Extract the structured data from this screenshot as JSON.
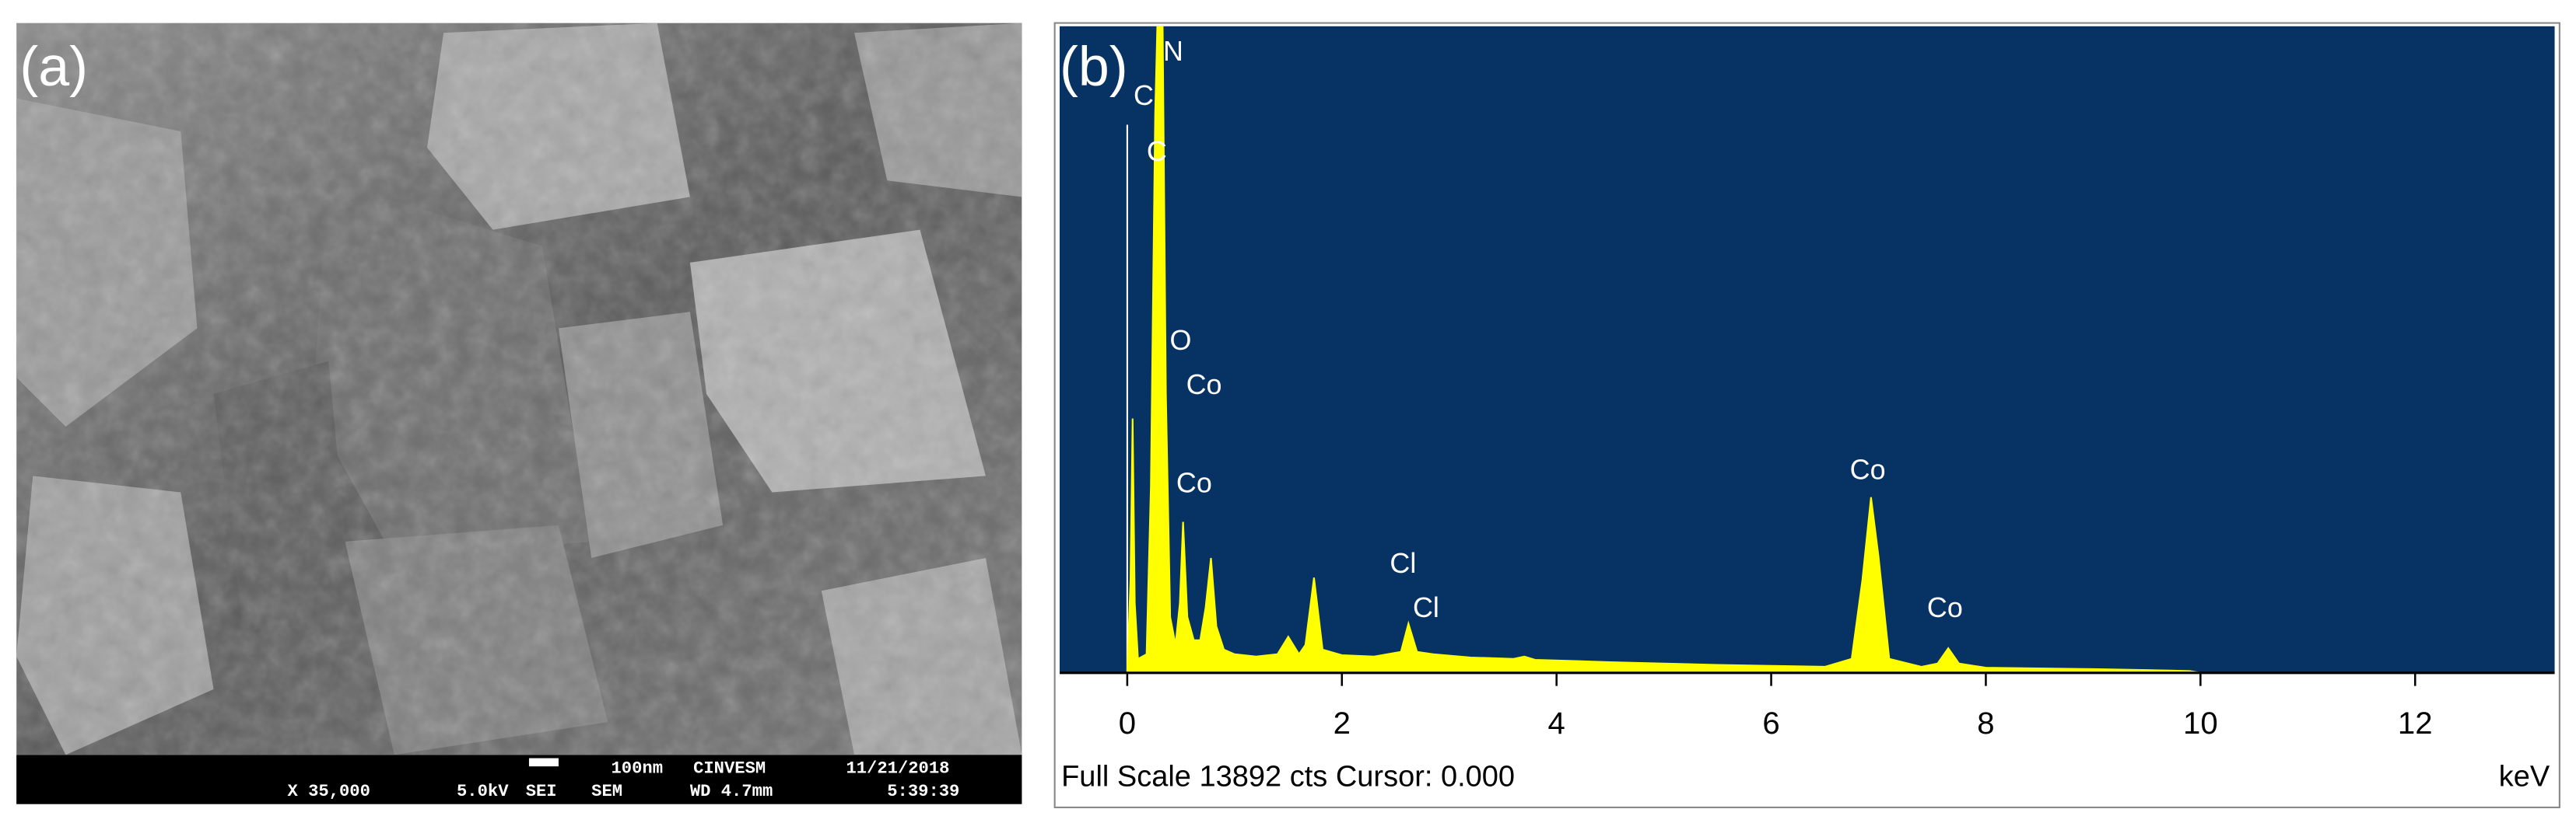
{
  "sem_panel": {
    "label": "(a)",
    "info_bar": {
      "scale": "100nm",
      "institution": "CINVESM",
      "date": "11/21/2018",
      "magnification": "X 35,000",
      "voltage": "5.0kV",
      "detector": "SEI",
      "mode": "SEM",
      "working_distance": "WD 4.7mm",
      "time": "5:39:39"
    }
  },
  "chart_data": {
    "type": "area",
    "panel_label": "(b)",
    "color": "#ffff00",
    "background": "#063264",
    "x": [
      -0.02,
      0.0,
      0.03,
      0.05,
      0.07,
      0.1,
      0.18,
      0.22,
      0.26,
      0.28,
      0.33,
      0.36,
      0.4,
      0.45,
      0.49,
      0.52,
      0.56,
      0.62,
      0.68,
      0.73,
      0.78,
      0.83,
      0.9,
      1.0,
      1.2,
      1.4,
      1.5,
      1.6,
      1.66,
      1.74,
      1.82,
      2.0,
      2.3,
      2.55,
      2.62,
      2.7,
      2.85,
      3.2,
      3.6,
      3.7,
      3.8,
      4.5,
      5.0,
      5.5,
      6.0,
      6.5,
      6.75,
      6.85,
      6.93,
      7.0,
      7.1,
      7.4,
      7.55,
      7.65,
      7.75,
      8.0,
      9.0,
      9.5,
      9.9,
      10.0
    ],
    "values": [
      0,
      0,
      2000,
      5465,
      1500,
      300,
      400,
      4000,
      12000,
      13892,
      13892,
      6000,
      1200,
      600,
      1500,
      3244,
      1200,
      700,
      700,
      1400,
      2468,
      1000,
      500,
      400,
      350,
      400,
      776,
      400,
      600,
      2045,
      500,
      380,
      350,
      450,
      1058,
      450,
      400,
      330,
      300,
      350,
      280,
      230,
      200,
      170,
      150,
      130,
      300,
      2000,
      3773,
      2500,
      300,
      130,
      200,
      529,
      200,
      110,
      80,
      60,
      40,
      0
    ],
    "xlim": [
      -0.63,
      13.3
    ],
    "ylim": [
      0,
      13892
    ],
    "xticks": [
      0,
      2,
      4,
      6,
      8,
      10,
      12
    ],
    "xlabel": "keV",
    "footer": "Full Scale 13892 cts Cursor: 0.000",
    "annotations": [
      {
        "text": "N"
      },
      {
        "text": "C"
      },
      {
        "text": "C"
      },
      {
        "text": "O"
      },
      {
        "text": "Co"
      },
      {
        "text": "Co"
      },
      {
        "text": "Cl"
      },
      {
        "text": "Cl"
      },
      {
        "text": "Co"
      },
      {
        "text": "Co"
      }
    ]
  }
}
